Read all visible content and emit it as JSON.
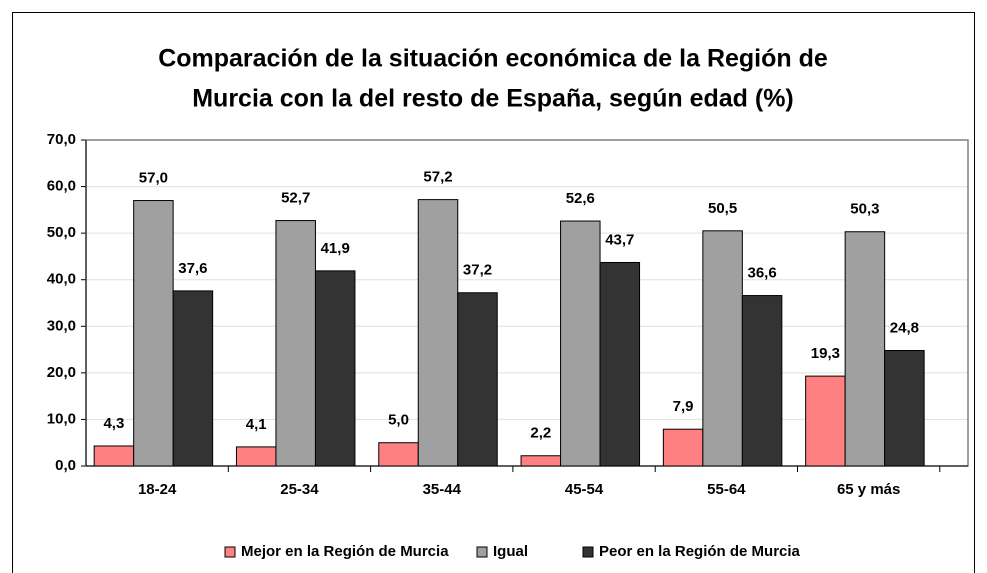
{
  "chart_data": {
    "type": "bar",
    "title": [
      "Comparación de la situación económica de la Región de",
      "Murcia con la del resto de España, según edad (%)"
    ],
    "categories": [
      "18-24",
      "25-34",
      "35-44",
      "45-54",
      "55-64",
      "65 y más"
    ],
    "series": [
      {
        "name": "Mejor en la Región de Murcia",
        "color": "#ff8080",
        "values": [
          4.3,
          4.1,
          5.0,
          2.2,
          7.9,
          19.3
        ],
        "value_labels": [
          "4,3",
          "4,1",
          "5,0",
          "2,2",
          "7,9",
          "19,3"
        ]
      },
      {
        "name": "Igual",
        "color": "#a0a0a0",
        "values": [
          57.0,
          52.7,
          57.2,
          52.6,
          50.5,
          50.3
        ],
        "value_labels": [
          "57,0",
          "52,7",
          "57,2",
          "52,6",
          "50,5",
          "50,3"
        ]
      },
      {
        "name": "Peor en la Región de Murcia",
        "color": "#333333",
        "values": [
          37.6,
          41.9,
          37.2,
          43.7,
          36.6,
          24.8
        ],
        "value_labels": [
          "37,6",
          "41,9",
          "37,2",
          "43,7",
          "36,6",
          "24,8"
        ]
      }
    ],
    "ylim": [
      0,
      70
    ],
    "yticks": [
      {
        "value": 0,
        "label": "0,0"
      },
      {
        "value": 10,
        "label": "10,0"
      },
      {
        "value": 20,
        "label": "20,0"
      },
      {
        "value": 30,
        "label": "30,0"
      },
      {
        "value": 40,
        "label": "40,0"
      },
      {
        "value": 50,
        "label": "50,0"
      },
      {
        "value": 60,
        "label": "60,0"
      },
      {
        "value": 70,
        "label": "70,0"
      }
    ],
    "grid": true,
    "legend": "bottom"
  }
}
